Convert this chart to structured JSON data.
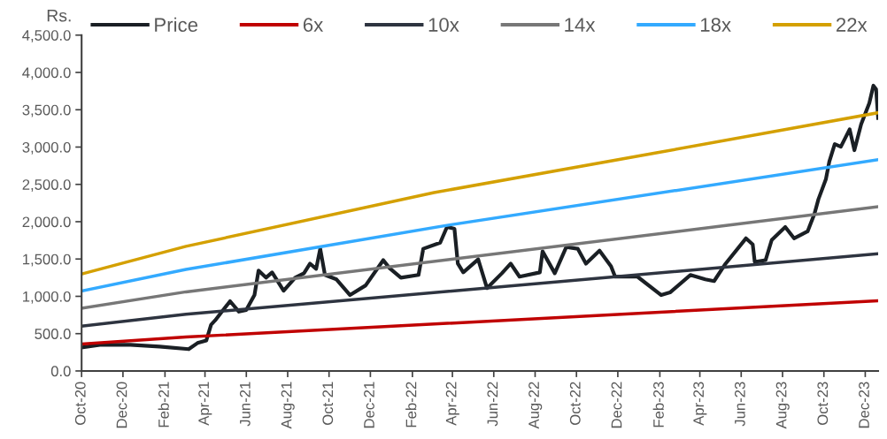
{
  "chart_data": {
    "type": "line",
    "ylabel": "Rs.",
    "legend": "top",
    "grid": false,
    "marker": "none",
    "line_style": "solid",
    "xlim": [
      "2020-10-01",
      "2023-12-20"
    ],
    "xticks": [
      {
        "value": "2020-10-01",
        "label": "Oct-20"
      },
      {
        "value": "2020-12-01",
        "label": "Dec-20"
      },
      {
        "value": "2021-02-01",
        "label": "Feb-21"
      },
      {
        "value": "2021-04-01",
        "label": "Apr-21"
      },
      {
        "value": "2021-06-01",
        "label": "Jun-21"
      },
      {
        "value": "2021-08-01",
        "label": "Aug-21"
      },
      {
        "value": "2021-10-01",
        "label": "Oct-21"
      },
      {
        "value": "2021-12-01",
        "label": "Dec-21"
      },
      {
        "value": "2022-02-01",
        "label": "Feb-22"
      },
      {
        "value": "2022-04-01",
        "label": "Apr-22"
      },
      {
        "value": "2022-06-01",
        "label": "Jun-22"
      },
      {
        "value": "2022-08-01",
        "label": "Aug-22"
      },
      {
        "value": "2022-10-01",
        "label": "Oct-22"
      },
      {
        "value": "2022-12-01",
        "label": "Dec-22"
      },
      {
        "value": "2023-02-01",
        "label": "Feb-23"
      },
      {
        "value": "2023-04-01",
        "label": "Apr-23"
      },
      {
        "value": "2023-06-01",
        "label": "Jun-23"
      },
      {
        "value": "2023-08-01",
        "label": "Aug-23"
      },
      {
        "value": "2023-10-01",
        "label": "Oct-23"
      },
      {
        "value": "2023-12-01",
        "label": "Dec-23"
      }
    ],
    "ylim": [
      0,
      4500
    ],
    "yticks": [
      {
        "value": 0,
        "label": "0.0"
      },
      {
        "value": 500,
        "label": "500.0"
      },
      {
        "value": 1000,
        "label": "1,000.0"
      },
      {
        "value": 1500,
        "label": "1,500.0"
      },
      {
        "value": 2000,
        "label": "2,000.0"
      },
      {
        "value": 2500,
        "label": "2,500.0"
      },
      {
        "value": 3000,
        "label": "3,000.0"
      },
      {
        "value": 3500,
        "label": "3,500.0"
      },
      {
        "value": 4000,
        "label": "4,000.0"
      },
      {
        "value": 4500,
        "label": "4,500.0"
      }
    ],
    "series": [
      {
        "name": "Price",
        "color": "#1a1f24",
        "x": [
          "2020-10-02",
          "2020-10-28",
          "2020-12-12",
          "2021-01-24",
          "2021-03-08",
          "2021-03-21",
          "2021-04-03",
          "2021-04-10",
          "2021-04-16",
          "2021-04-25",
          "2021-05-08",
          "2021-05-21",
          "2021-06-01",
          "2021-06-13",
          "2021-06-19",
          "2021-06-30",
          "2021-07-09",
          "2021-07-26",
          "2021-08-12",
          "2021-08-25",
          "2021-09-03",
          "2021-09-12",
          "2021-09-18",
          "2021-09-25",
          "2021-10-12",
          "2021-11-01",
          "2021-11-24",
          "2021-12-20",
          "2021-12-29",
          "2022-01-15",
          "2022-02-10",
          "2022-02-17",
          "2022-03-14",
          "2022-03-24",
          "2022-04-04",
          "2022-04-09",
          "2022-04-17",
          "2022-05-09",
          "2022-05-22",
          "2022-06-13",
          "2022-06-26",
          "2022-07-09",
          "2022-08-08",
          "2022-08-12",
          "2022-08-30",
          "2022-09-16",
          "2022-10-03",
          "2022-10-15",
          "2022-11-04",
          "2022-11-21",
          "2022-11-27",
          "2022-12-30",
          "2023-02-03",
          "2023-02-16",
          "2023-03-18",
          "2023-04-09",
          "2023-04-22",
          "2023-05-09",
          "2023-06-08",
          "2023-06-18",
          "2023-06-21",
          "2023-07-07",
          "2023-07-16",
          "2023-08-05",
          "2023-08-18",
          "2023-09-07",
          "2023-09-17",
          "2023-09-23",
          "2023-10-04",
          "2023-10-09",
          "2023-10-17",
          "2023-10-26",
          "2023-11-08",
          "2023-11-15",
          "2023-11-25",
          "2023-12-07",
          "2023-12-13",
          "2023-12-17",
          "2023-12-20"
        ],
        "values": [
          316,
          350,
          350,
          327,
          292,
          374,
          409,
          620,
          678,
          783,
          935,
          795,
          818,
          1017,
          1345,
          1250,
          1321,
          1075,
          1250,
          1309,
          1438,
          1368,
          1637,
          1286,
          1227,
          1017,
          1146,
          1485,
          1380,
          1250,
          1286,
          1637,
          1719,
          1929,
          1906,
          1438,
          1321,
          1496,
          1110,
          1309,
          1438,
          1263,
          1321,
          1602,
          1309,
          1660,
          1637,
          1438,
          1613,
          1403,
          1263,
          1263,
          1017,
          1052,
          1286,
          1227,
          1204,
          1438,
          1777,
          1695,
          1461,
          1485,
          1754,
          1929,
          1777,
          1871,
          2104,
          2303,
          2572,
          2806,
          3039,
          3004,
          3238,
          2958,
          3308,
          3589,
          3823,
          3776,
          3390
        ]
      },
      {
        "name": "6x",
        "color": "#c00000",
        "x": [
          "2020-10-01",
          "2021-03-04",
          "2023-12-20"
        ],
        "values": [
          360,
          455,
          940
        ]
      },
      {
        "name": "10x",
        "color": "#2e3440",
        "x": [
          "2020-10-01",
          "2021-03-04",
          "2023-12-20"
        ],
        "values": [
          600,
          760,
          1570
        ]
      },
      {
        "name": "14x",
        "color": "#777777",
        "x": [
          "2020-10-01",
          "2021-03-04",
          "2023-12-20"
        ],
        "values": [
          840,
          1060,
          2200
        ]
      },
      {
        "name": "18x",
        "color": "#33aaff",
        "x": [
          "2020-10-01",
          "2021-03-04",
          "2022-03-30",
          "2023-12-20"
        ],
        "values": [
          1070,
          1360,
          1960,
          2830
        ]
      },
      {
        "name": "22x",
        "color": "#d4a000",
        "x": [
          "2020-10-01",
          "2021-03-04",
          "2022-03-05",
          "2023-01-25",
          "2023-12-20"
        ],
        "values": [
          1300,
          1670,
          2390,
          2920,
          3460
        ]
      }
    ]
  }
}
